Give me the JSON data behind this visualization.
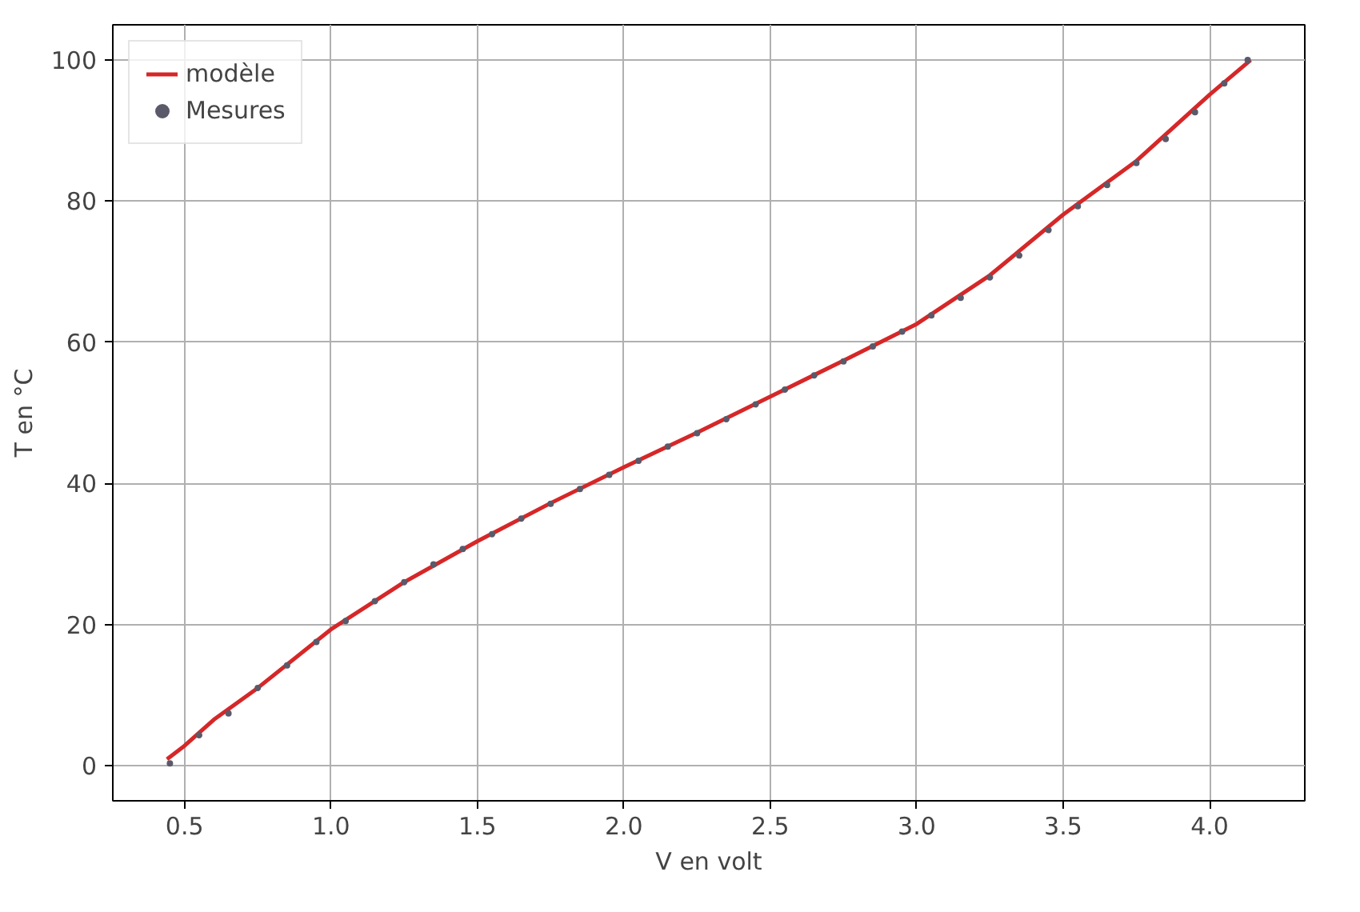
{
  "chart_data": {
    "type": "line",
    "xlabel": "V en volt",
    "ylabel": "T en °C",
    "xlim": [
      0.255,
      4.325
    ],
    "ylim": [
      -5,
      105
    ],
    "xticks": [
      {
        "value": 0.5,
        "label": "0.5"
      },
      {
        "value": 1.0,
        "label": "1.0"
      },
      {
        "value": 1.5,
        "label": "1.5"
      },
      {
        "value": 2.0,
        "label": "2.0"
      },
      {
        "value": 2.5,
        "label": "2.5"
      },
      {
        "value": 3.0,
        "label": "3.0"
      },
      {
        "value": 3.5,
        "label": "3.5"
      },
      {
        "value": 4.0,
        "label": "4.0"
      }
    ],
    "yticks": [
      0,
      20,
      40,
      60,
      80,
      100
    ],
    "grid": true,
    "legend": "top left",
    "series": [
      {
        "name": "modèle",
        "color": "#d62728",
        "line_style": "solid",
        "marker": "none",
        "x": [
          0.44,
          0.5,
          0.6,
          0.75,
          1.0,
          1.25,
          1.5,
          1.75,
          2.0,
          2.25,
          2.5,
          2.75,
          3.0,
          3.25,
          3.5,
          3.75,
          4.0,
          4.14
        ],
        "values": [
          0.9,
          2.8,
          6.5,
          11,
          19.3,
          26,
          31.8,
          37.2,
          42.3,
          47.2,
          52.3,
          57.4,
          62.6,
          69.5,
          78.1,
          85.7,
          95.1,
          100
        ]
      },
      {
        "name": "Mesures",
        "type": "scatter",
        "color": "#5a5a6a",
        "marker": "circle",
        "x": [
          0.45,
          0.55,
          0.65,
          0.75,
          0.85,
          0.95,
          1.05,
          1.15,
          1.25,
          1.35,
          1.45,
          1.55,
          1.65,
          1.75,
          1.85,
          1.95,
          2.05,
          2.15,
          2.25,
          2.35,
          2.45,
          2.55,
          2.65,
          2.75,
          2.85,
          2.95,
          3.05,
          3.15,
          3.25,
          3.35,
          3.45,
          3.55,
          3.65,
          3.75,
          3.85,
          3.95,
          4.05,
          4.13
        ],
        "values": [
          0.3,
          4.3,
          7.4,
          11,
          14.2,
          17.5,
          20.5,
          23.3,
          26,
          28.5,
          30.7,
          32.8,
          35,
          37.1,
          39.2,
          41.2,
          43.2,
          45.2,
          47.1,
          49.1,
          51.2,
          53.3,
          55.3,
          57.3,
          59.4,
          61.5,
          63.8,
          66.3,
          69.2,
          72.3,
          75.9,
          79.3,
          82.3,
          85.4,
          88.8,
          92.6,
          96.7,
          100
        ]
      }
    ]
  }
}
